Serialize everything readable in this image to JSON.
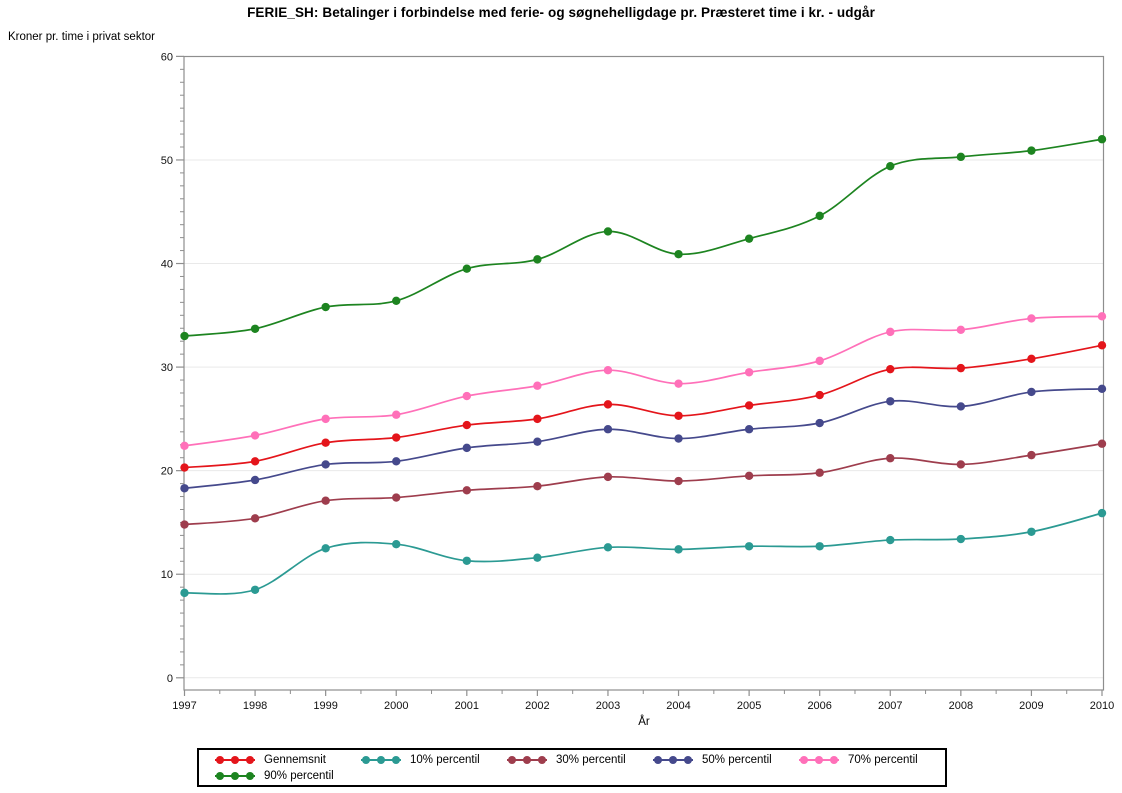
{
  "header": {
    "title": "FERIE_SH: Betalinger i forbindelse med ferie- og søgnehelligdage pr. Præsteret time i kr. - udgår"
  },
  "axes": {
    "y_axis_title": "Kroner pr. time i privat sektor",
    "x_axis_title": "År"
  },
  "chart_data": {
    "type": "line",
    "title": "FERIE_SH: Betalinger i forbindelse med ferie- og søgnehelligdage pr. Præsteret time i kr. - udgår",
    "xlabel": "År",
    "ylabel": "Kroner pr. time i privat sektor",
    "x": [
      1997,
      1998,
      1999,
      2000,
      2001,
      2002,
      2003,
      2004,
      2005,
      2006,
      2007,
      2008,
      2009,
      2010
    ],
    "ylim": [
      0,
      60
    ],
    "yticks": [
      0,
      10,
      20,
      30,
      40,
      50,
      60
    ],
    "grid": "horizontal-major",
    "legend_position": "bottom",
    "marker": "filled-circle",
    "line_style": "smooth-spline",
    "frame_color": "#8e8e8e",
    "gridline_color": "#e9e9e9",
    "series": [
      {
        "name": "Gennemsnit",
        "color": "#e4151b",
        "values": [
          20.3,
          20.9,
          22.7,
          23.2,
          24.4,
          25.0,
          26.4,
          25.3,
          26.3,
          27.3,
          29.8,
          29.9,
          30.8,
          32.1
        ]
      },
      {
        "name": "10% percentil",
        "color": "#2b9a93",
        "values": [
          8.2,
          8.5,
          12.5,
          12.9,
          11.3,
          11.6,
          12.6,
          12.4,
          12.7,
          12.7,
          13.3,
          13.4,
          14.1,
          15.9
        ]
      },
      {
        "name": "30% percentil",
        "color": "#9e3d4d",
        "values": [
          14.8,
          15.4,
          17.1,
          17.4,
          18.1,
          18.5,
          19.4,
          19.0,
          19.5,
          19.8,
          21.2,
          20.6,
          21.5,
          22.6
        ]
      },
      {
        "name": "50% percentil",
        "color": "#45498c",
        "values": [
          18.3,
          19.1,
          20.6,
          20.9,
          22.2,
          22.8,
          24.0,
          23.1,
          24.0,
          24.6,
          26.7,
          26.2,
          27.6,
          27.9
        ]
      },
      {
        "name": "70% percentil",
        "color": "#ff70b9",
        "values": [
          22.4,
          23.4,
          25.0,
          25.4,
          27.2,
          28.2,
          29.7,
          28.4,
          29.5,
          30.6,
          33.4,
          33.6,
          34.7,
          34.9
        ]
      },
      {
        "name": "90% percentil",
        "color": "#1d8420",
        "values": [
          33.0,
          33.7,
          35.8,
          36.4,
          39.5,
          40.4,
          43.1,
          40.9,
          42.4,
          44.6,
          49.4,
          50.3,
          50.9,
          52.0
        ]
      }
    ]
  }
}
